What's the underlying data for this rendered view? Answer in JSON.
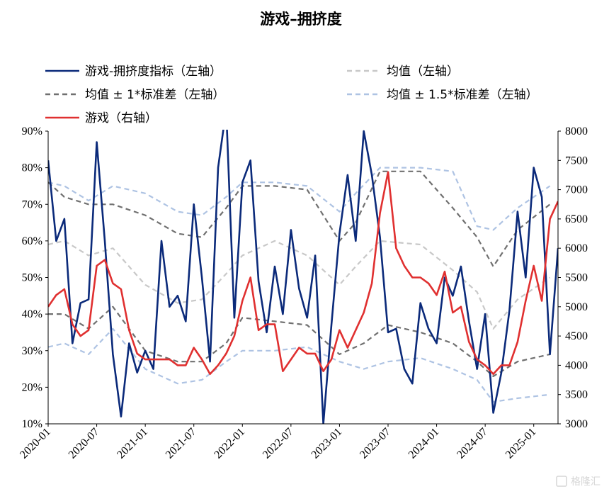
{
  "chart_data": {
    "type": "line",
    "title": "游戏–拥挤度",
    "x_ticks": [
      "2020-01",
      "2020-07",
      "2021-01",
      "2021-07",
      "2022-01",
      "2022-07",
      "2023-01",
      "2023-07",
      "2024-01",
      "2024-07",
      "2025-01"
    ],
    "y_left": {
      "min": 0.1,
      "max": 0.9,
      "ticks": [
        "10%",
        "20%",
        "30%",
        "40%",
        "50%",
        "60%",
        "70%",
        "80%",
        "90%"
      ]
    },
    "y_right": {
      "min": 3000,
      "max": 8000,
      "ticks": [
        "3000",
        "3500",
        "4000",
        "4500",
        "5000",
        "5500",
        "6000",
        "6500",
        "7000",
        "7500",
        "8000"
      ]
    },
    "x_range": [
      "2020-01",
      "2025-04"
    ],
    "legend": [
      {
        "key": "crowd",
        "label": "游戏-拥挤度指标（左轴）",
        "color": "#0b2a7a",
        "dash": "solid"
      },
      {
        "key": "mean",
        "label": "均值（左轴）",
        "color": "#c8c8c8",
        "dash": "dashed"
      },
      {
        "key": "band1",
        "label": "均值 ± 1*标准差（左轴）",
        "color": "#707070",
        "dash": "dashed"
      },
      {
        "key": "band15",
        "label": "均值 ± 1.5*标准差（左轴）",
        "color": "#aec3e3",
        "dash": "dashed"
      },
      {
        "key": "game",
        "label": "游戏（右轴）",
        "color": "#e03030",
        "dash": "solid"
      }
    ],
    "series": [
      {
        "key": "band15_upper",
        "axis": "left",
        "x": [
          "2020-01",
          "2020-03",
          "2020-06",
          "2020-09",
          "2021-01",
          "2021-05",
          "2021-08",
          "2021-11",
          "2022-01",
          "2022-05",
          "2022-09",
          "2023-01",
          "2023-03",
          "2023-06",
          "2023-11",
          "2024-03",
          "2024-06",
          "2024-08",
          "2024-11",
          "2025-03"
        ],
        "y": [
          0.76,
          0.75,
          0.71,
          0.75,
          0.73,
          0.68,
          0.67,
          0.72,
          0.76,
          0.76,
          0.75,
          0.68,
          0.73,
          0.8,
          0.8,
          0.79,
          0.64,
          0.63,
          0.69,
          0.75
        ]
      },
      {
        "key": "band15_lower",
        "axis": "left",
        "x": [
          "2020-01",
          "2020-03",
          "2020-06",
          "2020-09",
          "2021-01",
          "2021-05",
          "2021-08",
          "2021-11",
          "2022-01",
          "2022-05",
          "2022-09",
          "2023-01",
          "2023-04",
          "2023-07",
          "2023-11",
          "2024-03",
          "2024-06",
          "2024-08",
          "2024-11",
          "2025-03"
        ],
        "y": [
          0.31,
          0.32,
          0.29,
          0.36,
          0.25,
          0.21,
          0.22,
          0.27,
          0.3,
          0.3,
          0.31,
          0.27,
          0.25,
          0.27,
          0.28,
          0.25,
          0.22,
          0.16,
          0.17,
          0.18
        ]
      },
      {
        "key": "band1_upper",
        "axis": "left",
        "x": [
          "2020-01",
          "2020-03",
          "2020-06",
          "2020-09",
          "2021-01",
          "2021-05",
          "2021-08",
          "2021-11",
          "2022-01",
          "2022-05",
          "2022-09",
          "2023-01",
          "2023-03",
          "2023-06",
          "2023-11",
          "2024-03",
          "2024-06",
          "2024-08",
          "2024-11",
          "2025-03"
        ],
        "y": [
          0.76,
          0.72,
          0.7,
          0.7,
          0.67,
          0.62,
          0.61,
          0.69,
          0.75,
          0.75,
          0.74,
          0.6,
          0.65,
          0.79,
          0.79,
          0.69,
          0.61,
          0.53,
          0.63,
          0.7
        ]
      },
      {
        "key": "band1_lower",
        "axis": "left",
        "x": [
          "2020-01",
          "2020-03",
          "2020-06",
          "2020-09",
          "2021-01",
          "2021-05",
          "2021-08",
          "2021-11",
          "2022-01",
          "2022-05",
          "2022-09",
          "2023-01",
          "2023-04",
          "2023-07",
          "2023-11",
          "2024-03",
          "2024-06",
          "2024-08",
          "2024-11",
          "2025-03"
        ],
        "y": [
          0.4,
          0.4,
          0.36,
          0.42,
          0.3,
          0.27,
          0.27,
          0.32,
          0.39,
          0.38,
          0.37,
          0.29,
          0.32,
          0.37,
          0.35,
          0.32,
          0.27,
          0.23,
          0.27,
          0.29
        ]
      },
      {
        "key": "mean",
        "axis": "left",
        "x": [
          "2020-01",
          "2020-03",
          "2020-06",
          "2020-09",
          "2021-01",
          "2021-05",
          "2021-08",
          "2021-11",
          "2022-01",
          "2022-05",
          "2022-09",
          "2023-01",
          "2023-03",
          "2023-06",
          "2023-11",
          "2024-03",
          "2024-06",
          "2024-08",
          "2024-11",
          "2025-03"
        ],
        "y": [
          0.59,
          0.6,
          0.56,
          0.58,
          0.48,
          0.43,
          0.44,
          0.51,
          0.56,
          0.6,
          0.56,
          0.48,
          0.53,
          0.6,
          0.59,
          0.52,
          0.46,
          0.36,
          0.44,
          0.5
        ]
      },
      {
        "key": "crowd",
        "axis": "left",
        "x": [
          "2020-01",
          "2020-02",
          "2020-03",
          "2020-04",
          "2020-05",
          "2020-06",
          "2020-07",
          "2020-08",
          "2020-09",
          "2020-10",
          "2020-11",
          "2020-12",
          "2021-01",
          "2021-02",
          "2021-03",
          "2021-04",
          "2021-05",
          "2021-06",
          "2021-07",
          "2021-08",
          "2021-09",
          "2021-10",
          "2021-11",
          "2021-12",
          "2022-01",
          "2022-02",
          "2022-03",
          "2022-04",
          "2022-05",
          "2022-06",
          "2022-07",
          "2022-08",
          "2022-09",
          "2022-10",
          "2022-11",
          "2022-12",
          "2023-01",
          "2023-02",
          "2023-03",
          "2023-04",
          "2023-05",
          "2023-06",
          "2023-07",
          "2023-08",
          "2023-09",
          "2023-10",
          "2023-11",
          "2023-12",
          "2024-01",
          "2024-02",
          "2024-03",
          "2024-04",
          "2024-05",
          "2024-06",
          "2024-07",
          "2024-08",
          "2024-09",
          "2024-10",
          "2024-11",
          "2024-12",
          "2025-01",
          "2025-02",
          "2025-03",
          "2025-04"
        ],
        "y": [
          0.82,
          0.6,
          0.66,
          0.32,
          0.43,
          0.44,
          0.87,
          0.6,
          0.29,
          0.12,
          0.32,
          0.24,
          0.3,
          0.25,
          0.6,
          0.42,
          0.45,
          0.38,
          0.7,
          0.5,
          0.27,
          0.8,
          0.96,
          0.39,
          0.76,
          0.82,
          0.49,
          0.35,
          0.53,
          0.4,
          0.63,
          0.47,
          0.39,
          0.56,
          0.1,
          0.37,
          0.62,
          0.78,
          0.6,
          0.9,
          0.78,
          0.61,
          0.35,
          0.36,
          0.25,
          0.21,
          0.43,
          0.36,
          0.32,
          0.5,
          0.45,
          0.53,
          0.38,
          0.25,
          0.4,
          0.13,
          0.24,
          0.41,
          0.68,
          0.5,
          0.8,
          0.72,
          0.29,
          0.58
        ]
      },
      {
        "key": "game",
        "axis": "right",
        "x": [
          "2020-01",
          "2020-02",
          "2020-03",
          "2020-04",
          "2020-05",
          "2020-06",
          "2020-07",
          "2020-08",
          "2020-09",
          "2020-10",
          "2020-11",
          "2020-12",
          "2021-01",
          "2021-02",
          "2021-03",
          "2021-04",
          "2021-05",
          "2021-06",
          "2021-07",
          "2021-08",
          "2021-09",
          "2021-10",
          "2021-11",
          "2021-12",
          "2022-01",
          "2022-02",
          "2022-03",
          "2022-04",
          "2022-05",
          "2022-06",
          "2022-07",
          "2022-08",
          "2022-09",
          "2022-10",
          "2022-11",
          "2022-12",
          "2023-01",
          "2023-02",
          "2023-03",
          "2023-04",
          "2023-05",
          "2023-06",
          "2023-07",
          "2023-08",
          "2023-09",
          "2023-10",
          "2023-11",
          "2023-12",
          "2024-01",
          "2024-02",
          "2024-03",
          "2024-04",
          "2024-05",
          "2024-06",
          "2024-07",
          "2024-08",
          "2024-09",
          "2024-10",
          "2024-11",
          "2024-12",
          "2025-01",
          "2025-02",
          "2025-03",
          "2025-04"
        ],
        "y": [
          5000,
          5200,
          5300,
          4700,
          4500,
          4600,
          5700,
          5800,
          5400,
          5300,
          4600,
          4200,
          4100,
          4100,
          4100,
          4100,
          4000,
          4000,
          4300,
          4100,
          3850,
          4000,
          4200,
          4500,
          5100,
          5500,
          4600,
          4700,
          4700,
          3900,
          4100,
          4300,
          4200,
          4200,
          3900,
          4100,
          4600,
          4300,
          4600,
          4900,
          5400,
          6600,
          7300,
          6000,
          5700,
          5500,
          5500,
          5400,
          5200,
          5600,
          4900,
          5000,
          4400,
          4100,
          4000,
          3850,
          4000,
          4000,
          4400,
          5100,
          5700,
          5100,
          6500,
          6800
        ]
      }
    ]
  },
  "watermark": "格隆汇"
}
